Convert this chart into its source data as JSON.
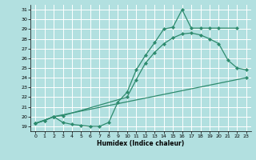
{
  "xlabel": "Humidex (Indice chaleur)",
  "xlim": [
    -0.5,
    23.5
  ],
  "ylim": [
    18.5,
    31.5
  ],
  "xticks": [
    0,
    1,
    2,
    3,
    4,
    5,
    6,
    7,
    8,
    9,
    10,
    11,
    12,
    13,
    14,
    15,
    16,
    17,
    18,
    19,
    20,
    21,
    22,
    23
  ],
  "yticks": [
    19,
    20,
    21,
    22,
    23,
    24,
    25,
    26,
    27,
    28,
    29,
    30,
    31
  ],
  "line_color": "#2e8b6e",
  "bg_color": "#b2e0e0",
  "grid_color": "#ffffff",
  "curve1_x": [
    0,
    1,
    2,
    3,
    4,
    5,
    6,
    7,
    8,
    9,
    10,
    11,
    12,
    13,
    14,
    15,
    16,
    17,
    18,
    19,
    20,
    22
  ],
  "curve1_y": [
    19.3,
    19.6,
    20.0,
    19.4,
    19.2,
    19.1,
    19.0,
    19.0,
    19.4,
    21.5,
    22.5,
    24.8,
    26.3,
    27.6,
    29.0,
    29.2,
    31.0,
    29.1,
    29.1,
    29.1,
    29.1,
    29.1
  ],
  "curve2_x": [
    0,
    1,
    2,
    3,
    10,
    11,
    12,
    13,
    14,
    15,
    16,
    17,
    18,
    19,
    20,
    21,
    22,
    23
  ],
  "curve2_y": [
    19.3,
    19.6,
    20.0,
    20.1,
    22.0,
    23.8,
    25.5,
    26.6,
    27.5,
    28.1,
    28.5,
    28.6,
    28.4,
    28.0,
    27.5,
    25.8,
    25.0,
    24.8
  ],
  "curve3_x": [
    0,
    2,
    23
  ],
  "curve3_y": [
    19.3,
    20.0,
    24.0
  ]
}
